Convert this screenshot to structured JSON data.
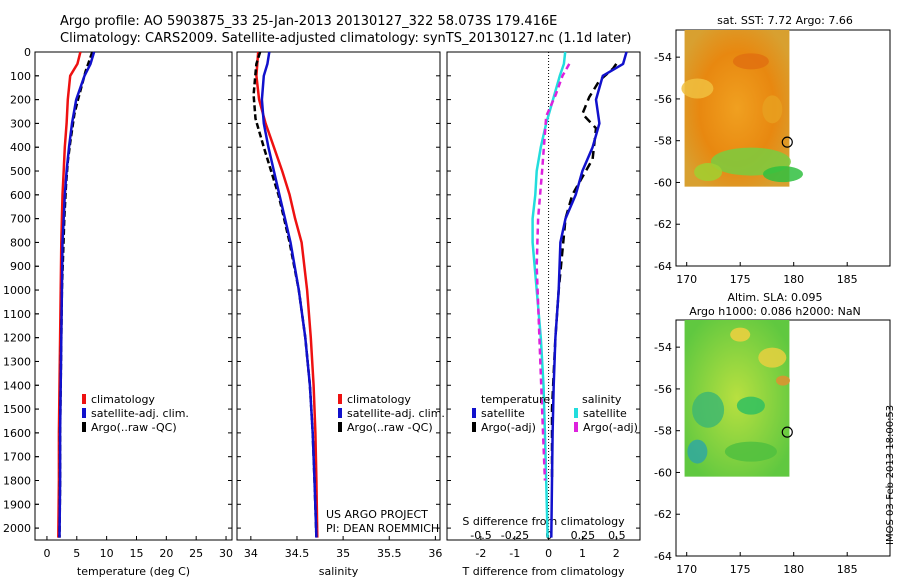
{
  "header": {
    "line1": "Argo profile: AO 5903875_33 25-Jan-2013 20130127_322 58.073S 179.416E",
    "line2": "Climatology: CARS2009. Satellite-adjusted climatology: synTS_20130127.nc (1.1d later)"
  },
  "colors": {
    "climatology": "#ee1111",
    "satellite": "#1111cc",
    "argo": "#000000",
    "sal_satellite": "#22dddd",
    "sal_argo": "#dd22dd"
  },
  "depth_ticks": [
    "0",
    "100",
    "200",
    "300",
    "400",
    "500",
    "600",
    "700",
    "800",
    "900",
    "1000",
    "1100",
    "1200",
    "1300",
    "1400",
    "1500",
    "1600",
    "1700",
    "1800",
    "1900",
    "2000"
  ],
  "temp_panel": {
    "xticks": [
      "0",
      "5",
      "10",
      "15",
      "20",
      "25",
      "30"
    ],
    "xlabel": "temperature (deg C)",
    "legend": [
      "climatology",
      "satellite-adj. clim.",
      "Argo(..raw -QC)"
    ]
  },
  "sal_panel": {
    "xticks": [
      "34",
      "34.5",
      "35",
      "35.5",
      "36"
    ],
    "xlabel": "salinity",
    "legend": [
      "climatology",
      "satellite-adj. clim.",
      "Argo(..raw -QC)"
    ],
    "credit1": "US ARGO PROJECT",
    "credit2": "PI: DEAN ROEMMICH"
  },
  "diff_panel": {
    "legend_temp_title": "temperature",
    "legend_sal_title": "salinity",
    "legend_items": [
      "satellite",
      "Argo(-adj)"
    ],
    "s_label": "S difference from climatology",
    "s_ticks": [
      "-0.5",
      "-0.25",
      "0",
      "0.25",
      "0.5"
    ],
    "t_ticks": [
      "-2",
      "-1",
      "0",
      "1",
      "2"
    ],
    "xlabel": "T difference from climatology"
  },
  "map_sst": {
    "title": "sat. SST: 7.72 Argo: 7.66",
    "yticks": [
      "-54",
      "-56",
      "-58",
      "-60",
      "-62",
      "-64"
    ],
    "xticks": [
      "170",
      "175",
      "180",
      "185"
    ]
  },
  "map_sla": {
    "title1": "Altim. SLA: 0.095",
    "title2": "Argo h1000: 0.086 h2000: NaN",
    "yticks": [
      "-54",
      "-56",
      "-58",
      "-60",
      "-62",
      "-64"
    ],
    "xticks": [
      "170",
      "175",
      "180",
      "185"
    ]
  },
  "footer": "IMOS 03-Feb-2013 18:00:53",
  "chart_data": [
    {
      "type": "line",
      "xlabel": "temperature (deg C)",
      "ylabel": "",
      "xlim": [
        -2,
        31
      ],
      "ylim": [
        2050,
        0
      ],
      "series": [
        {
          "name": "climatology",
          "x": [
            5.6,
            5.1,
            3.9,
            3.5,
            3.3,
            3.0,
            2.8,
            2.6,
            2.5,
            2.4,
            2.3,
            2.2,
            2.1,
            2.0,
            2.0,
            1.9
          ],
          "y": [
            0,
            50,
            100,
            200,
            300,
            400,
            500,
            600,
            700,
            800,
            1000,
            1200,
            1400,
            1600,
            1800,
            2040
          ]
        },
        {
          "name": "satellite-adj. clim.",
          "x": [
            7.9,
            7.3,
            6.3,
            4.9,
            4.2,
            3.7,
            3.3,
            3.0,
            2.8,
            2.6,
            2.5,
            2.4,
            2.3,
            2.2,
            2.2,
            2.1
          ],
          "y": [
            0,
            50,
            100,
            200,
            300,
            400,
            500,
            600,
            700,
            800,
            1000,
            1200,
            1400,
            1600,
            1800,
            2040
          ]
        },
        {
          "name": "Argo(..raw -QC)",
          "x": [
            7.6,
            6.5,
            5.2,
            4.6,
            3.9,
            3.5,
            3.2,
            2.9,
            2.7,
            2.5,
            2.4,
            2.3,
            2.2,
            2.2,
            2.1
          ],
          "y": [
            0,
            80,
            200,
            260,
            380,
            460,
            560,
            700,
            850,
            1000,
            1200,
            1400,
            1600,
            1800,
            2040
          ]
        }
      ]
    },
    {
      "type": "line",
      "xlabel": "salinity",
      "ylabel": "",
      "xlim": [
        33.85,
        36.05
      ],
      "ylim": [
        2050,
        0
      ],
      "series": [
        {
          "name": "climatology",
          "x": [
            34.08,
            34.07,
            34.06,
            34.09,
            34.16,
            34.25,
            34.34,
            34.42,
            34.48,
            34.55,
            34.61,
            34.65,
            34.68,
            34.7,
            34.71,
            34.72
          ],
          "y": [
            0,
            50,
            100,
            200,
            300,
            400,
            500,
            600,
            700,
            800,
            1000,
            1200,
            1400,
            1600,
            1800,
            2040
          ]
        },
        {
          "name": "satellite-adj. clim.",
          "x": [
            34.2,
            34.18,
            34.14,
            34.12,
            34.14,
            34.19,
            34.25,
            34.31,
            34.37,
            34.43,
            34.52,
            34.59,
            34.64,
            34.67,
            34.69,
            34.71
          ],
          "y": [
            0,
            50,
            100,
            200,
            300,
            400,
            500,
            600,
            700,
            800,
            1000,
            1200,
            1400,
            1600,
            1800,
            2040
          ]
        },
        {
          "name": "Argo(..raw -QC)",
          "x": [
            34.1,
            34.06,
            34.05,
            34.03,
            34.05,
            34.14,
            34.22,
            34.3,
            34.36,
            34.42,
            34.52,
            34.59,
            34.64,
            34.67,
            34.69,
            34.71
          ],
          "y": [
            0,
            50,
            90,
            180,
            280,
            400,
            500,
            600,
            700,
            800,
            1000,
            1200,
            1400,
            1600,
            1800,
            2040
          ]
        }
      ]
    },
    {
      "type": "line",
      "xlabel": "T difference from climatology",
      "xlim": [
        -3,
        2.7
      ],
      "ylim": [
        2050,
        0
      ],
      "series": [
        {
          "name": "satellite",
          "x": [
            2.3,
            2.2,
            1.6,
            1.4,
            1.5,
            1.3,
            1.0,
            0.8,
            0.5,
            0.35,
            0.3,
            0.2,
            0.15,
            0.12,
            0.1,
            0.08
          ],
          "y": [
            0,
            50,
            100,
            200,
            300,
            400,
            500,
            600,
            700,
            800,
            1000,
            1200,
            1400,
            1600,
            1800,
            2040
          ]
        },
        {
          "name": "Argo(-adj)",
          "x": [
            2.0,
            1.9,
            1.5,
            1.2,
            1.0,
            1.4,
            1.3,
            0.7,
            0.5,
            0.4,
            0.3,
            0.2,
            0.1,
            0.1
          ],
          "y": [
            50,
            70,
            120,
            190,
            260,
            320,
            450,
            600,
            700,
            850,
            1000,
            1200,
            1500,
            1800
          ]
        }
      ]
    },
    {
      "type": "line",
      "xlabel": "S difference from climatology",
      "xlim": [
        -0.75,
        0.67
      ],
      "ylim": [
        2050,
        0
      ],
      "series": [
        {
          "name": "satellite",
          "x": [
            0.12,
            0.11,
            0.08,
            0.03,
            -0.02,
            -0.06,
            -0.09,
            -0.1,
            -0.12,
            -0.12,
            -0.09,
            -0.06,
            -0.04,
            -0.03,
            -0.02,
            -0.01
          ],
          "y": [
            0,
            50,
            100,
            200,
            300,
            400,
            500,
            600,
            700,
            800,
            1000,
            1200,
            1400,
            1600,
            1800,
            2040
          ]
        },
        {
          "name": "Argo(-adj)",
          "x": [
            0.15,
            0.1,
            0.05,
            -0.02,
            -0.05,
            -0.08,
            -0.09,
            -0.07,
            -0.05,
            -0.03
          ],
          "y": [
            50,
            100,
            180,
            270,
            500,
            700,
            900,
            1200,
            1500,
            1800
          ]
        }
      ]
    }
  ]
}
